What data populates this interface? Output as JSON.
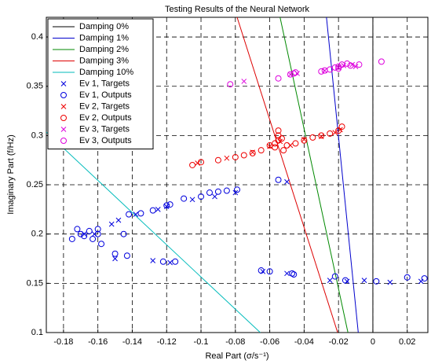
{
  "chart_data": {
    "type": "scatter",
    "title": "Testing Results of the Neural Network",
    "x_label": "Real Part (σ/s⁻¹)",
    "y_label": "Imaginary Part (f/Hz)",
    "xlim": [
      -0.19,
      0.032
    ],
    "ylim": [
      0.1,
      0.42
    ],
    "xticks": [
      -0.18,
      -0.16,
      -0.14,
      -0.12,
      -0.1,
      -0.08,
      -0.06,
      -0.04,
      -0.02,
      0,
      0.02
    ],
    "yticks": [
      0.1,
      0.15,
      0.2,
      0.25,
      0.3,
      0.35,
      0.4
    ],
    "grid": true,
    "legend": "upper-left",
    "series": [
      {
        "name": "Damping 0%",
        "color": "#000000",
        "marker": "line",
        "x": [
          0,
          0
        ],
        "y": [
          0.1,
          0.42
        ]
      },
      {
        "name": "Damping 1%",
        "color": "#0000cc",
        "marker": "line",
        "x": [
          -0.0085,
          -0.027
        ],
        "y": [
          0.1,
          0.42
        ]
      },
      {
        "name": "Damping 2%",
        "color": "#008800",
        "marker": "line",
        "x": [
          -0.0145,
          -0.054
        ],
        "y": [
          0.1,
          0.42
        ]
      },
      {
        "name": "Damping 3%",
        "color": "#dd0000",
        "marker": "line",
        "x": [
          -0.0205,
          -0.079
        ],
        "y": [
          0.1,
          0.42
        ]
      },
      {
        "name": "Damping 10%",
        "color": "#00bbbb",
        "marker": "line",
        "x": [
          -0.0655,
          -0.19
        ],
        "y": [
          0.1,
          0.3035
        ]
      },
      {
        "name": "Ev 1, Targets",
        "color": "#0000dd",
        "marker": "x",
        "x": [
          -0.168,
          -0.162,
          -0.152,
          -0.148,
          -0.138,
          -0.125,
          -0.12,
          -0.105,
          -0.092,
          -0.08,
          -0.05,
          -0.15,
          -0.128,
          -0.118,
          -0.064,
          -0.05,
          -0.025,
          -0.015,
          -0.005,
          0.01,
          0.028
        ],
        "y": [
          0.2,
          0.2,
          0.21,
          0.214,
          0.22,
          0.225,
          0.228,
          0.235,
          0.238,
          0.242,
          0.253,
          0.175,
          0.173,
          0.171,
          0.162,
          0.16,
          0.153,
          0.152,
          0.153,
          0.151,
          0.152
        ]
      },
      {
        "name": "Ev 1, Outputs",
        "color": "#0000dd",
        "marker": "o",
        "x": [
          -0.17,
          -0.172,
          -0.168,
          -0.165,
          -0.163,
          -0.16,
          -0.175,
          -0.158,
          -0.16,
          -0.15,
          -0.145,
          -0.142,
          -0.135,
          -0.128,
          -0.12,
          -0.118,
          -0.11,
          -0.1,
          -0.095,
          -0.09,
          -0.085,
          -0.079,
          -0.055,
          -0.143,
          -0.122,
          -0.115,
          -0.065,
          -0.06,
          -0.047,
          -0.046,
          -0.022,
          -0.016,
          0.002,
          0.02,
          0.03
        ],
        "y": [
          0.2,
          0.205,
          0.198,
          0.203,
          0.195,
          0.205,
          0.195,
          0.19,
          0.2,
          0.18,
          0.2,
          0.22,
          0.221,
          0.224,
          0.229,
          0.23,
          0.236,
          0.238,
          0.242,
          0.243,
          0.244,
          0.245,
          0.255,
          0.178,
          0.172,
          0.172,
          0.163,
          0.162,
          0.16,
          0.159,
          0.157,
          0.153,
          0.152,
          0.156,
          0.155
        ]
      },
      {
        "name": "Ev 2, Targets",
        "color": "#ee0000",
        "marker": "x",
        "x": [
          -0.102,
          -0.085,
          -0.07,
          -0.06,
          -0.054,
          -0.048,
          -0.04,
          -0.03,
          -0.022,
          -0.019
        ],
        "y": [
          0.272,
          0.277,
          0.283,
          0.289,
          0.294,
          0.29,
          0.296,
          0.299,
          0.303,
          0.306
        ]
      },
      {
        "name": "Ev 2, Outputs",
        "color": "#ee0000",
        "marker": "o",
        "x": [
          -0.105,
          -0.1,
          -0.09,
          -0.08,
          -0.075,
          -0.07,
          -0.065,
          -0.06,
          -0.057,
          -0.055,
          -0.053,
          -0.055,
          -0.057,
          -0.052,
          -0.05,
          -0.045,
          -0.04,
          -0.035,
          -0.03,
          -0.025,
          -0.02,
          -0.018,
          -0.055
        ],
        "y": [
          0.27,
          0.273,
          0.275,
          0.278,
          0.28,
          0.282,
          0.285,
          0.29,
          0.292,
          0.295,
          0.297,
          0.3,
          0.288,
          0.285,
          0.29,
          0.292,
          0.295,
          0.298,
          0.3,
          0.302,
          0.305,
          0.309,
          0.305
        ]
      },
      {
        "name": "Ev 3, Targets",
        "color": "#dd00dd",
        "marker": "x",
        "x": [
          -0.075,
          -0.048,
          -0.044,
          -0.028,
          -0.02,
          -0.012,
          -0.01,
          -0.017
        ],
        "y": [
          0.355,
          0.362,
          0.363,
          0.366,
          0.369,
          0.372,
          0.37,
          0.371
        ]
      },
      {
        "name": "Ev 3, Outputs",
        "color": "#dd00dd",
        "marker": "o",
        "x": [
          -0.083,
          -0.055,
          -0.048,
          -0.046,
          -0.045,
          -0.03,
          -0.028,
          -0.025,
          -0.022,
          -0.02,
          -0.018,
          -0.015,
          -0.013,
          -0.008,
          0.005,
          -0.02
        ],
        "y": [
          0.352,
          0.358,
          0.362,
          0.363,
          0.364,
          0.365,
          0.366,
          0.367,
          0.369,
          0.37,
          0.372,
          0.373,
          0.371,
          0.372,
          0.375,
          0.368
        ]
      }
    ]
  }
}
